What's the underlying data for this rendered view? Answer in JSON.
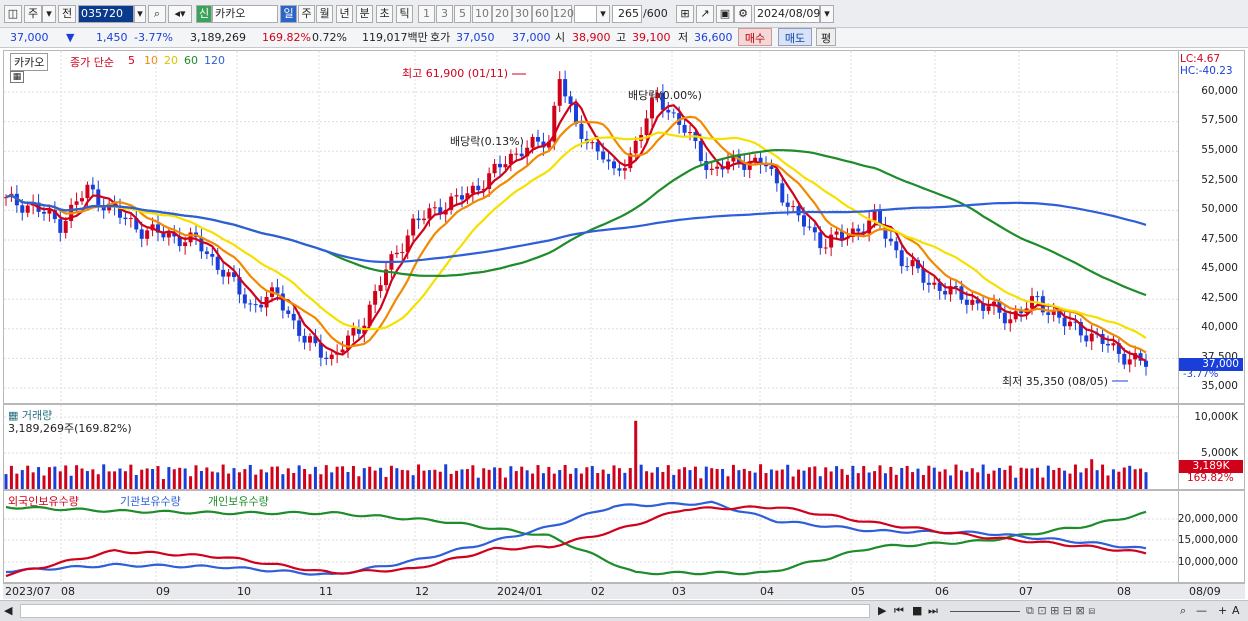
{
  "toolbar": {
    "period_btn": "주",
    "prev_btn": "전",
    "code": "035720",
    "new_badge": "신",
    "stock_name": "카카오",
    "day": "일",
    "week": "주",
    "month": "월",
    "year": "년",
    "minute": "분",
    "sec": "초",
    "tick": "틱",
    "num_buttons": [
      "1",
      "3",
      "5",
      "10",
      "20",
      "30",
      "60",
      "120"
    ],
    "count": "265",
    "count_total": "/600",
    "date": "2024/08/09"
  },
  "quote": {
    "price": "37,000",
    "arrow": "▼",
    "change": "1,450",
    "change_pct": "-3.77%",
    "volume": "3,189,269",
    "vol_ratio": "169.82%",
    "turnover": "0.72%",
    "amount": "119,017백만",
    "hoga_label": "호가",
    "hoga_ask": "37,050",
    "hoga_bid": "37,000",
    "open_label": "시",
    "open": "38,900",
    "high_label": "고",
    "high": "39,100",
    "low_label": "저",
    "low": "36,600",
    "buy": "매수",
    "sell": "매도",
    "eval": "평"
  },
  "price_pane": {
    "name": "카카오",
    "legend_main": "종가 단순",
    "ma": [
      {
        "name": "5",
        "color": "#d0021b"
      },
      {
        "name": "10",
        "color": "#f08a00"
      },
      {
        "name": "20",
        "color": "#f5e000"
      },
      {
        "name": "60",
        "color": "#1e8c2a"
      },
      {
        "name": "120",
        "color": "#2f5fd8"
      }
    ],
    "lc": "LC:4.67",
    "hc": "HC:-40.23",
    "high_note": "최고 61,900 (01/11)",
    "low_note": "최저 35,350 (08/05)",
    "div1": "배당락(0.13%)",
    "div2": "배당락(0.00%)",
    "cur_price": "37,000",
    "cur_pct": "-3.77%",
    "cur_prev": "37,500",
    "y_labels": [
      "60,000",
      "57,500",
      "55,000",
      "52,500",
      "50,000",
      "47,500",
      "45,000",
      "42,500",
      "40,000",
      "37,500",
      "35,000"
    ]
  },
  "volume_pane": {
    "title": "거래량",
    "value": "3,189,269주(169.82%)",
    "y_labels": [
      "10,000K",
      "5,000K"
    ],
    "cur": "3,189K",
    "cur_pct": "169.82%"
  },
  "holding_pane": {
    "legend": [
      {
        "name": "외국인보유수량",
        "color": "#d0021b"
      },
      {
        "name": "기관보유수량",
        "color": "#2f5fd8"
      },
      {
        "name": "개인보유수량",
        "color": "#1e8c2a"
      }
    ],
    "y_labels": [
      "20,000,000",
      "15,000,000",
      "10,000,000"
    ]
  },
  "x_labels": [
    "2023/07",
    "08",
    "09",
    "10",
    "11",
    "12",
    "2024/01",
    "02",
    "03",
    "04",
    "05",
    "06",
    "07",
    "08",
    "08/09"
  ],
  "chart_data": {
    "type": "line",
    "title": "카카오 일봉",
    "series": [
      {
        "name": "종가",
        "points": [
          [
            0,
            51000
          ],
          [
            5,
            50500
          ],
          [
            10,
            49000
          ],
          [
            15,
            52000
          ],
          [
            20,
            50000
          ],
          [
            25,
            48500
          ],
          [
            30,
            48000
          ],
          [
            35,
            47500
          ],
          [
            40,
            45000
          ],
          [
            45,
            42000
          ],
          [
            50,
            43000
          ],
          [
            55,
            39000
          ],
          [
            60,
            37600
          ],
          [
            65,
            40000
          ],
          [
            70,
            45000
          ],
          [
            75,
            49000
          ],
          [
            80,
            50500
          ],
          [
            85,
            51500
          ],
          [
            90,
            53500
          ],
          [
            95,
            55500
          ],
          [
            100,
            56000
          ],
          [
            102,
            61900
          ],
          [
            105,
            57000
          ],
          [
            110,
            55000
          ],
          [
            112,
            53000
          ],
          [
            115,
            55000
          ],
          [
            120,
            60000
          ],
          [
            125,
            57000
          ],
          [
            130,
            53500
          ],
          [
            135,
            54500
          ],
          [
            140,
            54000
          ],
          [
            145,
            50000
          ],
          [
            150,
            47500
          ],
          [
            155,
            48000
          ],
          [
            160,
            49500
          ],
          [
            165,
            46000
          ],
          [
            170,
            44000
          ],
          [
            175,
            43000
          ],
          [
            180,
            42000
          ],
          [
            185,
            41000
          ],
          [
            190,
            42500
          ],
          [
            195,
            40500
          ],
          [
            200,
            39500
          ],
          [
            205,
            38000
          ],
          [
            210,
            37000
          ]
        ]
      }
    ],
    "y_range": [
      35000,
      61900
    ]
  }
}
